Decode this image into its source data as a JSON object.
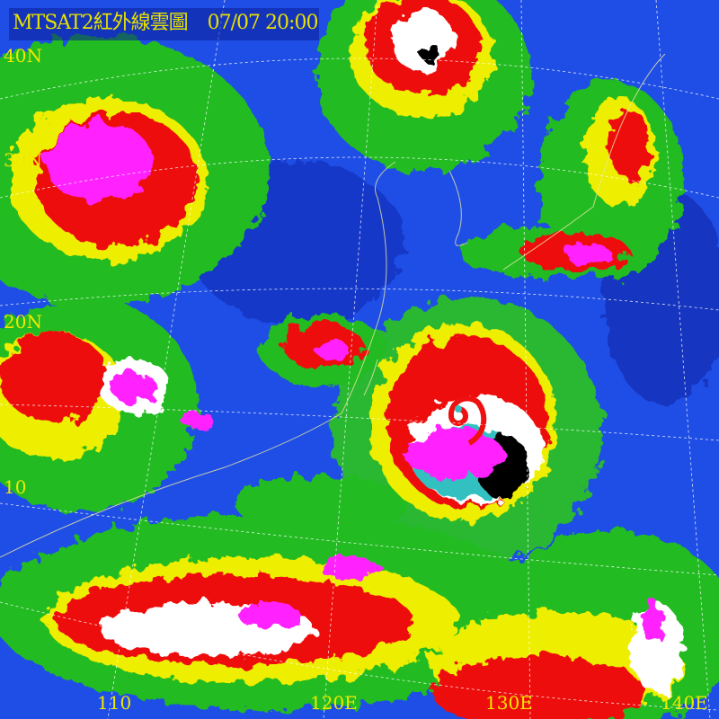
{
  "title": {
    "product": "MTSAT2紅外線雲圖",
    "datetime": "07/07 20:00"
  },
  "lat_labels": [
    "40N",
    "30N",
    "20N",
    "10"
  ],
  "lon_labels": [
    "110",
    "120E",
    "130E",
    "140E"
  ],
  "colors": {
    "clear_sky": "#1f4ee6",
    "low_cloud": "#20c020",
    "mid_cloud": "#f0f000",
    "high_cloud": "#f01010",
    "very_high": "#ffffff",
    "coldest": "#ff20ff",
    "cyan": "#30c0c0",
    "black": "#000000"
  },
  "features": {
    "typhoon": "typhoon-spiral"
  }
}
